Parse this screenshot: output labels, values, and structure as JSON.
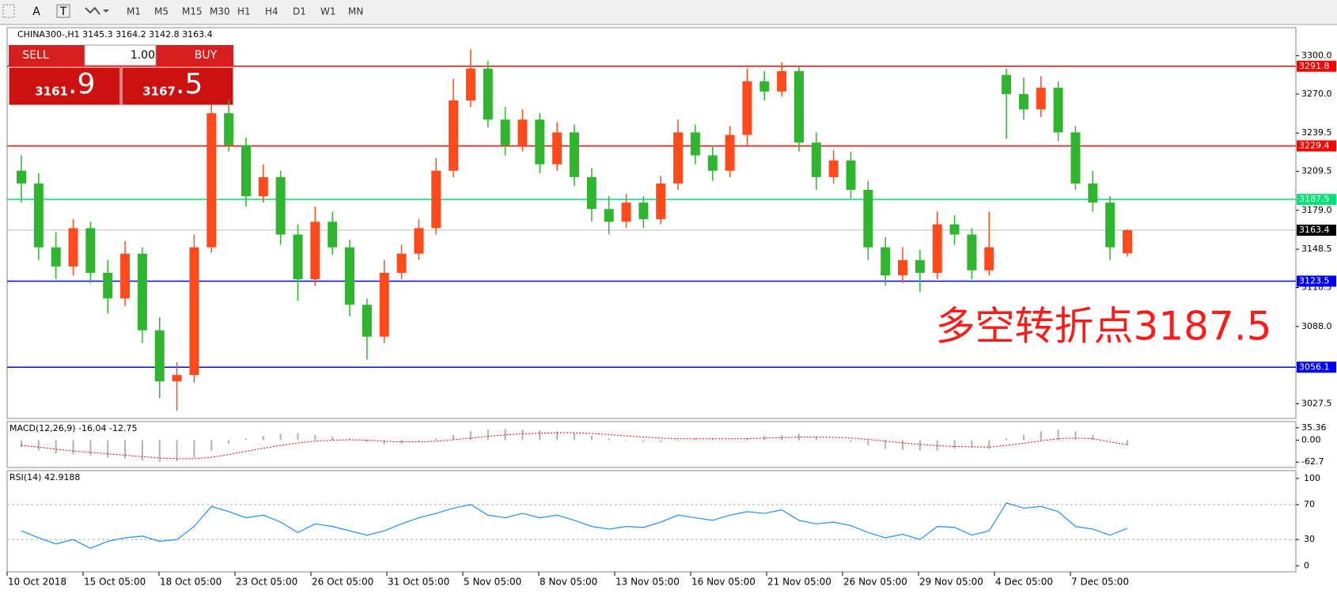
{
  "toolbar": {
    "buttons": [
      "A",
      "T"
    ],
    "timeframes": [
      "M1",
      "M5",
      "M15",
      "M30",
      "H1",
      "H4",
      "D1",
      "W1",
      "MN"
    ]
  },
  "trade_panel": {
    "sell": "SELL",
    "buy": "BUY",
    "lot": "1.00",
    "sell_big": "3161",
    "sell_small": ".9",
    "buy_big": "3167",
    "buy_small": ".5"
  },
  "chart_data": {
    "type": "candlestick",
    "header": "CHINA300-,H1  3145.3 3164.2 3142.8 3163.4",
    "annotation": "多空转折点3187.5",
    "up_color": "#ff4a1c",
    "down_color": "#2fb52f",
    "open": [
      3210,
      3200,
      3150,
      3135,
      3165,
      3130,
      3110,
      3145,
      3085,
      3045,
      3050,
      3150,
      3255,
      3230,
      3190,
      3205,
      3160,
      3125,
      3170,
      3150,
      3105,
      3080,
      3130,
      3145,
      3165,
      3210,
      3265,
      3290,
      3250,
      3230,
      3250,
      3215,
      3240,
      3205,
      3180,
      3170,
      3185,
      3172,
      3200,
      3240,
      3222,
      3210,
      3238,
      3280,
      3272,
      3288,
      3232,
      3205,
      3218,
      3195,
      3150,
      3128,
      3140,
      3130,
      3168,
      3160,
      3132,
      3285,
      3270,
      3258,
      3275,
      3240,
      3200,
      3185,
      3145.3
    ],
    "high": [
      3222,
      3208,
      3162,
      3172,
      3170,
      3140,
      3155,
      3150,
      3095,
      3060,
      3160,
      3262,
      3266,
      3236,
      3215,
      3210,
      3168,
      3182,
      3178,
      3156,
      3110,
      3140,
      3152,
      3172,
      3220,
      3282,
      3305,
      3296,
      3260,
      3258,
      3255,
      3248,
      3246,
      3212,
      3190,
      3192,
      3190,
      3206,
      3250,
      3246,
      3230,
      3245,
      3290,
      3288,
      3295,
      3292,
      3240,
      3226,
      3225,
      3202,
      3158,
      3150,
      3148,
      3178,
      3175,
      3165,
      3178,
      3290,
      3283,
      3284,
      3280,
      3245,
      3210,
      3190,
      3164.2
    ],
    "low": [
      3185,
      3140,
      3125,
      3128,
      3122,
      3098,
      3104,
      3075,
      3032,
      3022,
      3044,
      3146,
      3225,
      3182,
      3185,
      3152,
      3108,
      3120,
      3144,
      3096,
      3062,
      3075,
      3125,
      3140,
      3160,
      3205,
      3260,
      3244,
      3222,
      3225,
      3208,
      3210,
      3198,
      3170,
      3160,
      3165,
      3165,
      3168,
      3195,
      3215,
      3202,
      3205,
      3230,
      3265,
      3268,
      3225,
      3195,
      3200,
      3188,
      3140,
      3120,
      3122,
      3115,
      3125,
      3152,
      3125,
      3128,
      3235,
      3250,
      3252,
      3233,
      3195,
      3178,
      3140,
      3142.8
    ],
    "close": [
      3200,
      3150,
      3135,
      3165,
      3130,
      3110,
      3145,
      3085,
      3045,
      3050,
      3150,
      3255,
      3230,
      3190,
      3205,
      3160,
      3125,
      3170,
      3150,
      3105,
      3080,
      3130,
      3145,
      3165,
      3210,
      3265,
      3290,
      3250,
      3230,
      3250,
      3215,
      3240,
      3205,
      3180,
      3170,
      3185,
      3172,
      3200,
      3240,
      3222,
      3210,
      3238,
      3280,
      3272,
      3288,
      3232,
      3205,
      3218,
      3195,
      3150,
      3128,
      3140,
      3130,
      3168,
      3160,
      3132,
      3150,
      3270,
      3258,
      3275,
      3240,
      3200,
      3185,
      3150,
      3163.4
    ],
    "ylim": [
      3016,
      3322
    ],
    "yticks": [
      {
        "value": 3300,
        "label": "3300.0"
      },
      {
        "value": 3270,
        "label": "3270.0"
      },
      3239.5,
      3209.5,
      {
        "value": 3179,
        "label": "3179.0"
      },
      3148.5,
      3118.5,
      {
        "value": 3088,
        "label": "3088.0"
      },
      3027.5
    ],
    "levels": [
      {
        "value": 3291.8,
        "color": "#ff0000"
      },
      {
        "value": 3229.4,
        "color": "#ff0000"
      },
      {
        "value": 3187.5,
        "color": "#00e676"
      },
      {
        "value": 3123.5,
        "color": "#0000ff"
      },
      {
        "value": 3056.1,
        "color": "#0000ff"
      }
    ],
    "current_price": 3163.4,
    "x_labels": [
      "10 Oct 2018",
      "15 Oct 05:00",
      "18 Oct 05:00",
      "23 Oct 05:00",
      "26 Oct 05:00",
      "31 Oct 05:00",
      "5 Nov 05:00",
      "8 Nov 05:00",
      "13 Nov 05:00",
      "16 Nov 05:00",
      "21 Nov 05:00",
      "26 Nov 05:00",
      "29 Nov 05:00",
      "4 Dec 05:00",
      "7 Dec 05:00"
    ],
    "macd": {
      "label": "MACD(12,26,9) -16.04 -12.75",
      "ylim": [
        -78,
        53
      ],
      "yticks": [
        35.36,
        {
          "value": 0,
          "label": "0.00"
        },
        -62.7
      ],
      "histogram": [
        -20,
        -30,
        -38,
        -40,
        -45,
        -50,
        -52,
        -58,
        -62,
        -60,
        -50,
        -30,
        -10,
        5,
        12,
        18,
        20,
        15,
        10,
        5,
        -5,
        -12,
        -10,
        -5,
        5,
        15,
        25,
        30,
        32,
        30,
        28,
        25,
        20,
        12,
        5,
        -2,
        -5,
        -6,
        -2,
        5,
        3,
        2,
        6,
        12,
        14,
        18,
        10,
        2,
        -5,
        -15,
        -25,
        -28,
        -30,
        -30,
        -25,
        -22,
        -25,
        5,
        15,
        25,
        30,
        25,
        15,
        2,
        -16.04
      ],
      "signal": [
        -15,
        -20,
        -26,
        -31,
        -35,
        -39,
        -43,
        -47,
        -51,
        -53,
        -53,
        -49,
        -41,
        -32,
        -23,
        -15,
        -8,
        -3,
        0,
        1,
        0,
        -3,
        -5,
        -5,
        -3,
        1,
        6,
        11,
        15,
        18,
        20,
        21,
        21,
        19,
        16,
        12,
        9,
        6,
        4,
        4,
        4,
        4,
        4,
        6,
        7,
        9,
        9,
        8,
        6,
        2,
        -3,
        -8,
        -12,
        -16,
        -18,
        -19,
        -20,
        -15,
        -9,
        -2,
        4,
        6,
        4,
        -5,
        -12.75
      ]
    },
    "rsi": {
      "label": "RSI(14) 42.9188",
      "ylim": [
        -7,
        109
      ],
      "yticks": [
        100,
        70,
        30,
        0
      ],
      "values": [
        40,
        32,
        25,
        30,
        20,
        28,
        32,
        34,
        28,
        30,
        45,
        68,
        62,
        55,
        58,
        50,
        38,
        48,
        45,
        40,
        35,
        40,
        48,
        55,
        60,
        66,
        70,
        58,
        55,
        60,
        55,
        58,
        52,
        45,
        42,
        45,
        44,
        50,
        58,
        55,
        52,
        58,
        62,
        60,
        64,
        52,
        48,
        50,
        46,
        38,
        32,
        36,
        30,
        45,
        44,
        35,
        40,
        72,
        66,
        68,
        62,
        45,
        42,
        35,
        42.9188
      ]
    }
  }
}
